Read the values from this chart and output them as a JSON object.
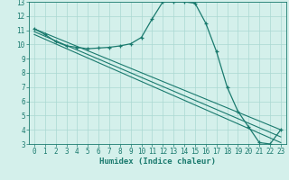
{
  "xlabel": "Humidex (Indice chaleur)",
  "bg_color": "#d4f0eb",
  "grid_color": "#aad8d2",
  "line_color": "#1a7a6e",
  "xlim": [
    -0.5,
    23.5
  ],
  "ylim": [
    3,
    13
  ],
  "xticks": [
    0,
    1,
    2,
    3,
    4,
    5,
    6,
    7,
    8,
    9,
    10,
    11,
    12,
    13,
    14,
    15,
    16,
    17,
    18,
    19,
    20,
    21,
    22,
    23
  ],
  "yticks": [
    3,
    4,
    5,
    6,
    7,
    8,
    9,
    10,
    11,
    12,
    13
  ],
  "main_line": {
    "x": [
      0,
      1,
      2,
      3,
      4,
      5,
      6,
      7,
      8,
      9,
      10,
      11,
      12,
      13,
      14,
      15,
      16,
      17,
      18,
      19,
      20,
      21,
      22,
      23
    ],
    "y": [
      11.1,
      10.7,
      10.2,
      9.9,
      9.8,
      9.7,
      9.75,
      9.8,
      9.9,
      10.05,
      10.5,
      11.8,
      13.0,
      13.0,
      13.0,
      12.9,
      11.5,
      9.5,
      7.0,
      5.3,
      4.2,
      3.1,
      3.0,
      4.0
    ]
  },
  "straight_lines": [
    {
      "x": [
        0,
        23
      ],
      "y": [
        11.1,
        4.0
      ]
    },
    {
      "x": [
        0,
        23
      ],
      "y": [
        10.9,
        3.5
      ]
    },
    {
      "x": [
        0,
        23
      ],
      "y": [
        10.7,
        3.1
      ]
    }
  ]
}
